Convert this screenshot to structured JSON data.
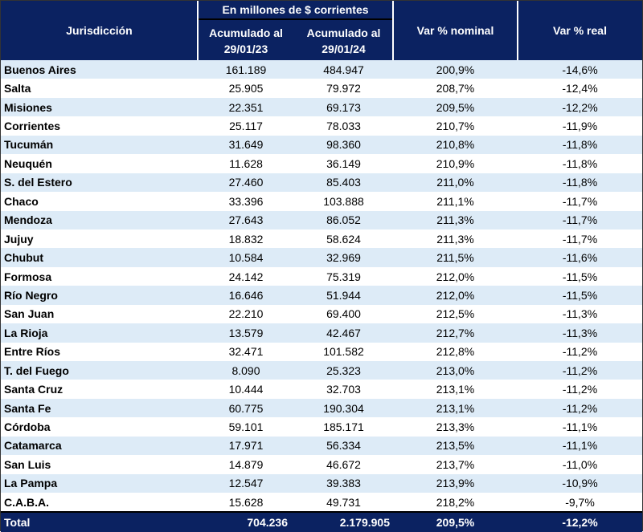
{
  "header": {
    "jurisdiccion": "Jurisdicción",
    "group": "En millones de $ corrientes",
    "col_2023": [
      "Acumulado al",
      "29/01/23"
    ],
    "col_2024": [
      "Acumulado al",
      "29/01/24"
    ],
    "var_nominal": "Var % nominal",
    "var_real": "Var % real"
  },
  "colors": {
    "header_bg": "#0b2261",
    "stripe": "#ddebf7"
  },
  "rows": [
    [
      "Buenos Aires",
      "161.189",
      "484.947",
      "200,9%",
      "-14,6%"
    ],
    [
      "Salta",
      "25.905",
      "79.972",
      "208,7%",
      "-12,4%"
    ],
    [
      "Misiones",
      "22.351",
      "69.173",
      "209,5%",
      "-12,2%"
    ],
    [
      "Corrientes",
      "25.117",
      "78.033",
      "210,7%",
      "-11,9%"
    ],
    [
      "Tucumán",
      "31.649",
      "98.360",
      "210,8%",
      "-11,8%"
    ],
    [
      "Neuquén",
      "11.628",
      "36.149",
      "210,9%",
      "-11,8%"
    ],
    [
      "S. del Estero",
      "27.460",
      "85.403",
      "211,0%",
      "-11,8%"
    ],
    [
      "Chaco",
      "33.396",
      "103.888",
      "211,1%",
      "-11,7%"
    ],
    [
      "Mendoza",
      "27.643",
      "86.052",
      "211,3%",
      "-11,7%"
    ],
    [
      "Jujuy",
      "18.832",
      "58.624",
      "211,3%",
      "-11,7%"
    ],
    [
      "Chubut",
      "10.584",
      "32.969",
      "211,5%",
      "-11,6%"
    ],
    [
      "Formosa",
      "24.142",
      "75.319",
      "212,0%",
      "-11,5%"
    ],
    [
      "Río Negro",
      "16.646",
      "51.944",
      "212,0%",
      "-11,5%"
    ],
    [
      "San Juan",
      "22.210",
      "69.400",
      "212,5%",
      "-11,3%"
    ],
    [
      "La Rioja",
      "13.579",
      "42.467",
      "212,7%",
      "-11,3%"
    ],
    [
      "Entre Ríos",
      "32.471",
      "101.582",
      "212,8%",
      "-11,2%"
    ],
    [
      "T. del Fuego",
      "8.090",
      "25.323",
      "213,0%",
      "-11,2%"
    ],
    [
      "Santa Cruz",
      "10.444",
      "32.703",
      "213,1%",
      "-11,2%"
    ],
    [
      "Santa Fe",
      "60.775",
      "190.304",
      "213,1%",
      "-11,2%"
    ],
    [
      "Córdoba",
      "59.101",
      "185.171",
      "213,3%",
      "-11,1%"
    ],
    [
      "Catamarca",
      "17.971",
      "56.334",
      "213,5%",
      "-11,1%"
    ],
    [
      "San Luis",
      "14.879",
      "46.672",
      "213,7%",
      "-11,0%"
    ],
    [
      "La Pampa",
      "12.547",
      "39.383",
      "213,9%",
      "-10,9%"
    ],
    [
      "C.A.B.A.",
      "15.628",
      "49.731",
      "218,2%",
      "-9,7%"
    ]
  ],
  "total": [
    "Total",
    "704.236",
    "2.179.905",
    "209,5%",
    "-12,2%"
  ]
}
